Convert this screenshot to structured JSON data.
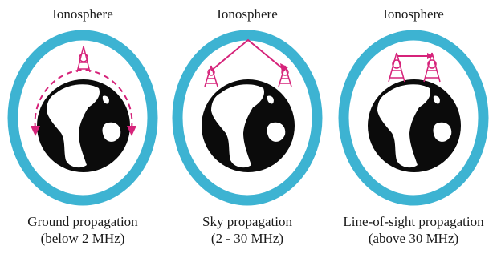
{
  "colors": {
    "ionosphere": "#3db3d2",
    "earth": "#0b0b0b",
    "land": "#ffffff",
    "signal": "#d6237a"
  },
  "panels": [
    {
      "title": "Ionosphere",
      "caption_line1": "Ground propagation",
      "caption_line2": "(below 2 MHz)"
    },
    {
      "title": "Ionosphere",
      "caption_line1": "Sky propagation",
      "caption_line2": "(2 - 30 MHz)"
    },
    {
      "title": "Ionosphere",
      "caption_line1": "Line-of-sight propagation",
      "caption_line2": "(above 30 MHz)"
    }
  ]
}
